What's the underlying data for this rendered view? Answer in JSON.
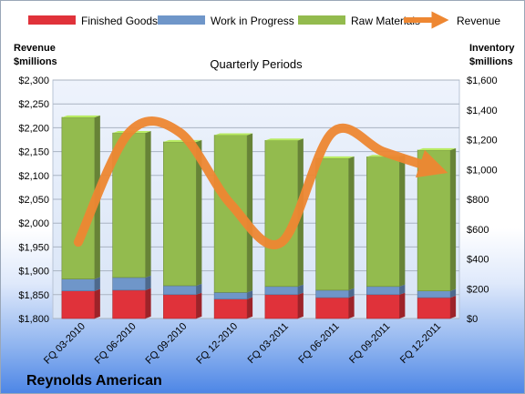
{
  "chart_data": {
    "type": "bar",
    "stacked": true,
    "title": "Quarterly Periods",
    "company": "Reynolds American",
    "left_axis": {
      "title_lines": [
        "Revenue",
        "$millions"
      ],
      "range": [
        1800,
        2300
      ],
      "step": 50,
      "tick_labels": [
        "$1,800",
        "$1,850",
        "$1,900",
        "$1,950",
        "$2,000",
        "$2,050",
        "$2,100",
        "$2,150",
        "$2,200",
        "$2,250",
        "$2,300"
      ]
    },
    "right_axis": {
      "title_lines": [
        "Inventory",
        "$millions"
      ],
      "range": [
        0,
        1600
      ],
      "step": 200,
      "tick_labels": [
        "$0",
        "$200",
        "$400",
        "$600",
        "$800",
        "$1,000",
        "$1,200",
        "$1,400",
        "$1,600"
      ]
    },
    "categories": [
      "FQ 03-2010",
      "FQ 06-2010",
      "FQ 09-2010",
      "FQ 12-2010",
      "FQ 03-2011",
      "FQ 06-2011",
      "FQ 09-2011",
      "FQ 12-2011"
    ],
    "series": [
      {
        "name": "Finished Goods",
        "axis": "right",
        "color": "#e0323a",
        "values": [
          185,
          190,
          160,
          130,
          160,
          140,
          160,
          140
        ]
      },
      {
        "name": "Work in Progress",
        "axis": "right",
        "color": "#6f96c9",
        "values": [
          80,
          85,
          60,
          45,
          55,
          50,
          55,
          45
        ]
      },
      {
        "name": "Raw Materials",
        "axis": "right",
        "color": "#93bb4e",
        "values": [
          1085,
          970,
          965,
          1055,
          980,
          885,
          870,
          945
        ]
      },
      {
        "name": "Revenue",
        "axis": "left",
        "type": "line",
        "color": "#ee8732",
        "values": [
          1960,
          2190,
          2190,
          2040,
          1960,
          2190,
          2150,
          2115
        ]
      }
    ],
    "grid": true,
    "legend_position": "top"
  }
}
